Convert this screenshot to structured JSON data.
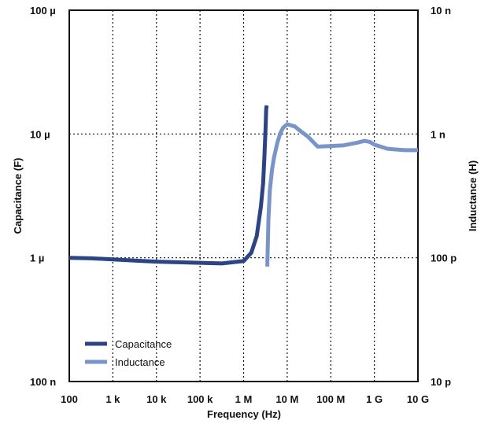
{
  "chart_data": {
    "type": "line",
    "xlabel": "Frequency (Hz)",
    "ylabel_left": "Capacitance (F)",
    "ylabel_right": "Inductance (H)",
    "x_scale": "log",
    "y_scale": "log",
    "xlim": [
      100,
      10000000000
    ],
    "ylim_left": [
      1e-07,
      0.0001
    ],
    "ylim_right": [
      1e-11,
      1e-08
    ],
    "grid": true,
    "legend_position": "bottom-left",
    "x_ticks": [
      {
        "value": 100,
        "label": "100"
      },
      {
        "value": 1000,
        "label": "1 k"
      },
      {
        "value": 10000,
        "label": "10 k"
      },
      {
        "value": 100000,
        "label": "100 k"
      },
      {
        "value": 1000000,
        "label": "1 M"
      },
      {
        "value": 10000000,
        "label": "10 M"
      },
      {
        "value": 100000000,
        "label": "100 M"
      },
      {
        "value": 1000000000,
        "label": "1 G"
      },
      {
        "value": 10000000000,
        "label": "10 G"
      }
    ],
    "y_ticks_left": [
      {
        "value": 1e-07,
        "label": "100 n"
      },
      {
        "value": 1e-06,
        "label": "1 µ"
      },
      {
        "value": 1e-05,
        "label": "10 µ"
      },
      {
        "value": 0.0001,
        "label": "100 µ"
      }
    ],
    "y_ticks_right": [
      {
        "value": 1e-11,
        "label": "10 p"
      },
      {
        "value": 1e-10,
        "label": "100 p"
      },
      {
        "value": 1e-09,
        "label": "1 n"
      },
      {
        "value": 1e-08,
        "label": "10 n"
      }
    ],
    "series": [
      {
        "name": "Capacitance",
        "axis": "left",
        "color": "#2b4488",
        "x": [
          100,
          316,
          1000,
          3162,
          10000,
          31623,
          100000,
          316228,
          1000000,
          1500000,
          2000000,
          2500000,
          2800000,
          3000000,
          3200000,
          3300000,
          3400000
        ],
        "y": [
          1e-06,
          9.9e-07,
          9.7e-07,
          9.5e-07,
          9.3e-07,
          9.2e-07,
          9.1e-07,
          9e-07,
          9.4e-07,
          1.1e-06,
          1.5e-06,
          2.6e-06,
          4e-06,
          6.5e-06,
          1.15e-05,
          1.6e-05,
          1.7e-05
        ]
      },
      {
        "name": "Inductance",
        "axis": "right",
        "color": "#7894cc",
        "x": [
          3500000,
          3700000,
          4000000,
          4500000,
          5000000,
          6000000,
          7000000,
          8000000,
          10000000,
          15000000,
          20000000,
          30000000,
          50000000,
          100000000,
          200000000,
          400000000,
          600000000,
          800000000,
          1000000000,
          2000000000,
          5000000000,
          10000000000
        ],
        "y": [
          8.5e-11,
          2e-10,
          3.5e-10,
          5.2e-10,
          6.5e-10,
          8.6e-10,
          1.02e-09,
          1.12e-09,
          1.2e-09,
          1.15e-09,
          1.06e-09,
          9.5e-10,
          7.9e-10,
          8e-10,
          8.1e-10,
          8.5e-10,
          8.8e-10,
          8.6e-10,
          8.2e-10,
          7.6e-10,
          7.4e-10,
          7.4e-10
        ]
      }
    ]
  }
}
